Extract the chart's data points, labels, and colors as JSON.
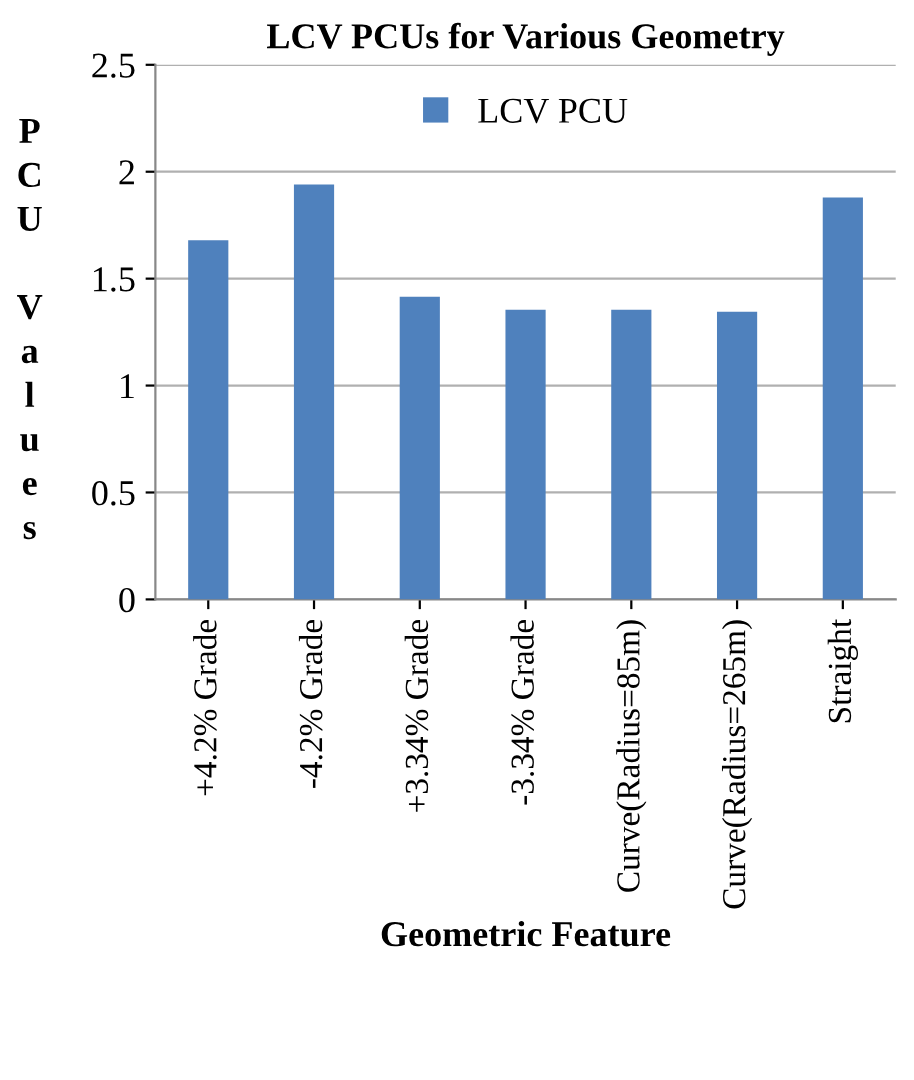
{
  "chart_data": {
    "type": "bar",
    "title": "LCV PCUs for Various Geometry",
    "xlabel": "Geometric Feature",
    "ylabel": "PCU Values",
    "categories": [
      "+4.2% Grade",
      "-4.2% Grade",
      "+3.34% Grade",
      "-3.34% Grade",
      "Curve(Radius=85m)",
      "Curve(Radius=265m)",
      "Straight"
    ],
    "series": [
      {
        "name": "LCV PCU",
        "color": "#4f81bd",
        "values": [
          1.68,
          1.94,
          1.415,
          1.355,
          1.355,
          1.345,
          1.88
        ]
      }
    ],
    "ylim": [
      0,
      2.5
    ],
    "yticks": [
      0,
      0.5,
      1,
      1.5,
      2,
      2.5
    ],
    "grid": "y",
    "legend": "top"
  }
}
